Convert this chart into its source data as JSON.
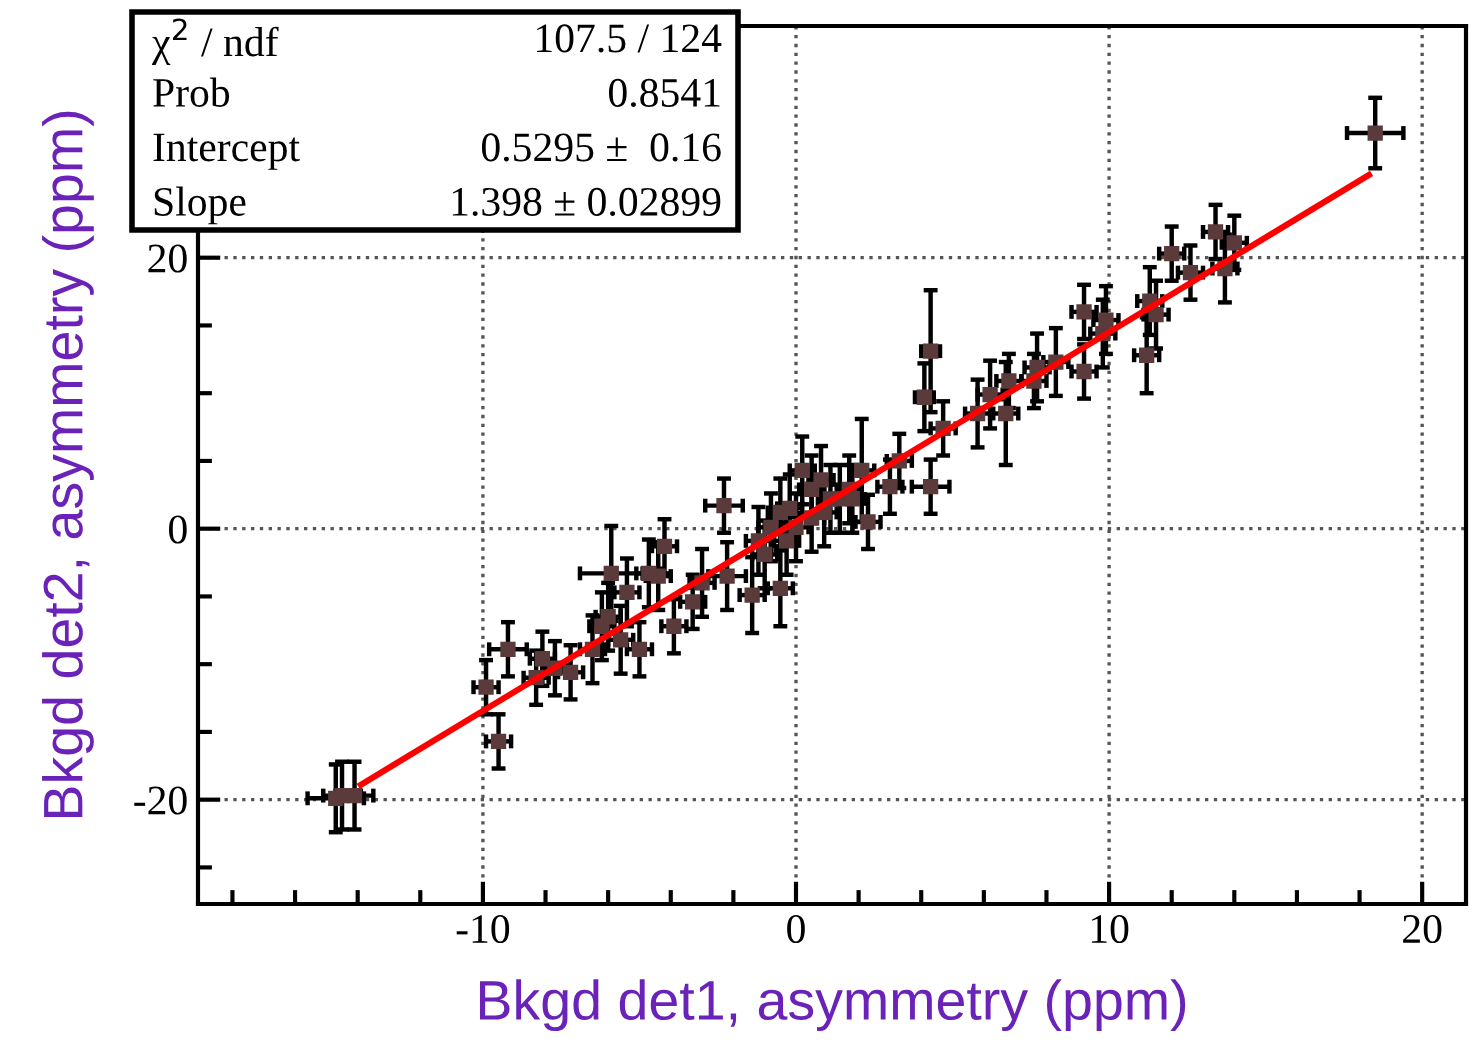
{
  "chart_data": {
    "type": "scatter",
    "xlabel": "Bkgd det1, asymmetry (ppm)",
    "ylabel": "Bkgd det2, asymmetry (ppm)",
    "annotations": [
      "χ$^{2}$ / ndf",
      "107.5 / 124",
      "Prob",
      "0.8541",
      "Intercept",
      "0.5295 ±  0.16",
      "Slope",
      "1.398 ± 0.02899"
    ],
    "xlim": [
      -19.1,
      21.4
    ],
    "ylim": [
      -27.7,
      37.1
    ],
    "xticks": [
      {
        "value": -18,
        "label": null
      },
      {
        "value": -16,
        "label": null
      },
      {
        "value": -14,
        "label": null
      },
      {
        "value": -12,
        "label": null
      },
      {
        "value": -10,
        "label": "-10"
      },
      {
        "value": -8,
        "label": null
      },
      {
        "value": -6,
        "label": null
      },
      {
        "value": -4,
        "label": null
      },
      {
        "value": -2,
        "label": null
      },
      0,
      {
        "value": 2,
        "label": null
      },
      {
        "value": 4,
        "label": null
      },
      {
        "value": 6,
        "label": null
      },
      {
        "value": 8,
        "label": null
      },
      10,
      {
        "value": 12,
        "label": null
      },
      {
        "value": 14,
        "label": null
      },
      {
        "value": 16,
        "label": null
      },
      {
        "value": 18,
        "label": null
      },
      20
    ],
    "yticks": [
      {
        "value": -25,
        "label": null
      },
      {
        "value": -20,
        "label": "-20"
      },
      {
        "value": -15,
        "label": null
      },
      {
        "value": -10,
        "label": null
      },
      {
        "value": -5,
        "label": null
      },
      0,
      {
        "value": 5,
        "label": null
      },
      {
        "value": 10,
        "label": null
      },
      {
        "value": 15,
        "label": null
      },
      20,
      {
        "value": 25,
        "label": null
      },
      {
        "value": 30,
        "label": null
      },
      {
        "value": 35,
        "label": null
      }
    ],
    "grid": true,
    "legend": false,
    "series": [
      {
        "color": "#5a3a3a",
        "marker": "square",
        "x": [
          18.5,
          13.4,
          14.0,
          13.7,
          12.0,
          12.6,
          11.3,
          11.5,
          11.2,
          9.9,
          9.8,
          9.2,
          9.2,
          8.3,
          7.7,
          7.6,
          6.8,
          6.7,
          6.2,
          5.8,
          4.7,
          4.3,
          4.1,
          4.3,
          3.3,
          3.0,
          2.3,
          2.1,
          1.7,
          1.1,
          0.8,
          0.5,
          0.2,
          -0.2,
          -0.3,
          -0.5,
          -0.8,
          -1.0,
          -1.2,
          -1.4,
          -2.3,
          -2.2,
          -3.0,
          -3.3,
          -3.9,
          -4.2,
          -4.4,
          -4.7,
          -5.0,
          -5.4,
          -5.6,
          -5.9,
          -6.0,
          -6.2,
          -6.5,
          -7.2,
          -7.7,
          -8.1,
          -8.3,
          -9.2,
          -9.5,
          -9.9,
          -14.1,
          -14.5,
          -14.7,
          0.5,
          0.0,
          -0.5,
          0.9,
          1.4,
          1.8
        ],
        "values": [
          29.2,
          21.9,
          21.1,
          19.2,
          20.3,
          18.9,
          16.8,
          15.8,
          12.8,
          15.4,
          14.4,
          16.0,
          11.6,
          12.3,
          11.9,
          10.9,
          10.9,
          8.5,
          9.9,
          8.5,
          7.4,
          13.1,
          9.7,
          3.1,
          5.0,
          3.1,
          0.5,
          4.3,
          2.9,
          2.2,
          3.6,
          0.8,
          4.3,
          1.5,
          -0.9,
          -4.4,
          0.1,
          -1.9,
          -0.9,
          -4.9,
          1.7,
          -3.5,
          -4.0,
          -5.4,
          -7.2,
          -1.3,
          -3.5,
          -3.3,
          -8.9,
          -4.7,
          -8.2,
          -3.3,
          -6.5,
          -7.2,
          -8.9,
          -10.6,
          -10.3,
          -9.6,
          -11.0,
          -8.9,
          -15.7,
          -11.7,
          -19.7,
          -19.7,
          -19.9,
          2.9,
          0.1,
          1.2,
          1.2,
          2.2,
          2.2
        ],
        "errors": [
          2.6,
          2.0,
          2.0,
          2.5,
          2.0,
          2.0,
          2.5,
          2.5,
          2.8,
          2.5,
          2.5,
          2.0,
          2.0,
          2.5,
          2.5,
          2.0,
          2.0,
          3.8,
          2.5,
          2.5,
          2.0,
          4.5,
          2.5,
          2.0,
          2.0,
          2.0,
          2.0,
          3.8,
          2.5,
          2.5,
          2.5,
          2.5,
          2.5,
          2.5,
          2.5,
          2.8,
          2.5,
          2.5,
          2.5,
          2.8,
          2.0,
          2.5,
          2.5,
          2.0,
          2.0,
          2.0,
          2.5,
          2.5,
          2.0,
          2.5,
          2.5,
          3.5,
          2.5,
          2.5,
          2.5,
          2.0,
          2.0,
          2.0,
          2.0,
          2.0,
          2.0,
          2.0,
          2.5,
          2.5,
          2.5,
          2.5,
          2.5,
          2.5,
          2.5,
          2.5,
          2.5
        ],
        "xerrors": [
          0.9,
          0.4,
          0.4,
          0.4,
          0.4,
          0.4,
          0.4,
          0.4,
          0.4,
          0.4,
          0.4,
          0.4,
          0.4,
          0.4,
          0.4,
          0.4,
          0.4,
          0.4,
          0.4,
          0.4,
          0.4,
          0.3,
          0.3,
          0.6,
          0.4,
          0.4,
          0.4,
          0.4,
          0.4,
          0.4,
          0.4,
          0.4,
          0.4,
          0.4,
          0.4,
          0.4,
          0.4,
          0.4,
          0.4,
          0.4,
          0.6,
          0.6,
          0.4,
          0.4,
          0.4,
          0.4,
          0.4,
          0.4,
          0.4,
          0.4,
          0.4,
          1.0,
          0.4,
          0.4,
          0.4,
          0.4,
          0.4,
          0.4,
          0.4,
          0.6,
          0.4,
          0.4,
          0.6,
          0.6,
          0.9,
          0.4,
          0.4,
          0.4,
          0.4,
          0.4,
          0.4
        ]
      },
      {
        "type": "line",
        "color": "#ff0000",
        "x": [
          -13.9,
          18.3
        ],
        "values": [
          -18.9,
          26.1
        ]
      }
    ]
  }
}
